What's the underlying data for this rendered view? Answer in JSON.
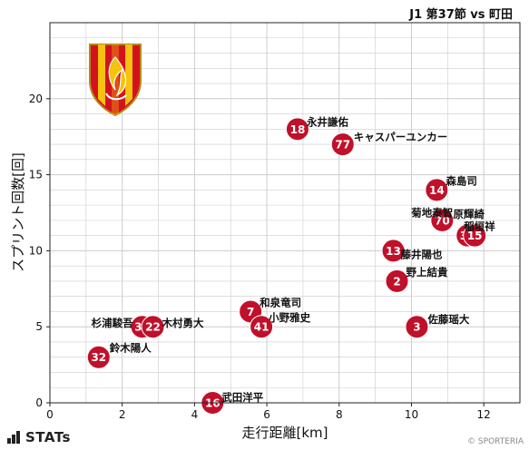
{
  "match_title": "J1 第37節 vs 町田",
  "brand": "STATs",
  "credit": "© SPORTERIA",
  "colors": {
    "point": "#c0102a",
    "point_edge": "#ffffff",
    "grid": "#cccccc",
    "emblem_red": "#d4121e",
    "emblem_yellow": "#f4c20f"
  },
  "emblem_icon": "team-crest-icon",
  "chart_data": {
    "type": "scatter",
    "title": "J1 第37節 vs 町田",
    "xlabel": "走行距離[km]",
    "ylabel": "スプリント回数[回]",
    "xlim": [
      0,
      13
    ],
    "ylim": [
      0,
      25
    ],
    "xticks": [
      0,
      2,
      4,
      6,
      8,
      10,
      12
    ],
    "yticks": [
      0,
      5,
      10,
      15,
      20
    ],
    "grid": true,
    "points": [
      {
        "number": "18",
        "name": "永井謙佑",
        "x": 6.85,
        "y": 18
      },
      {
        "number": "77",
        "name": "キャスパーユンカー",
        "x": 8.1,
        "y": 17
      },
      {
        "number": "14",
        "name": "森島司",
        "x": 10.7,
        "y": 14
      },
      {
        "number": "70",
        "name": "原輝綺",
        "x": 10.85,
        "y": 12
      },
      {
        "number": "33",
        "name": "菊地泰智",
        "x": 11.55,
        "y": 11
      },
      {
        "number": "15",
        "name": "稲垣祥",
        "x": 11.75,
        "y": 11
      },
      {
        "number": "13",
        "name": "藤井陽也",
        "x": 9.5,
        "y": 10
      },
      {
        "number": "2",
        "name": "野上結貴",
        "x": 9.6,
        "y": 8
      },
      {
        "number": "7",
        "name": "和泉竜司",
        "x": 5.55,
        "y": 6
      },
      {
        "number": "41",
        "name": "小野雅史",
        "x": 5.85,
        "y": 5
      },
      {
        "number": "3",
        "name": "佐藤瑶大",
        "x": 10.15,
        "y": 5
      },
      {
        "number": "30",
        "name": "杉浦駿吾",
        "x": 2.55,
        "y": 5
      },
      {
        "number": "22",
        "name": "木村勇大",
        "x": 2.85,
        "y": 5
      },
      {
        "number": "32",
        "name": "鈴木陽人",
        "x": 1.35,
        "y": 3
      },
      {
        "number": "16",
        "name": "武田洋平",
        "x": 4.5,
        "y": 0
      }
    ]
  }
}
